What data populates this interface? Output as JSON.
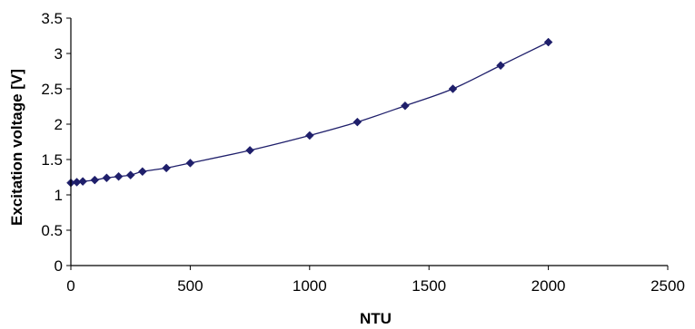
{
  "chart_data": {
    "type": "line",
    "title": "",
    "xlabel": "NTU",
    "ylabel": "Excitation voltage [V]",
    "xlim": [
      0,
      2500
    ],
    "ylim": [
      0,
      3.5
    ],
    "xticks": [
      0,
      500,
      1000,
      1500,
      2000,
      2500
    ],
    "yticks": [
      0,
      0.5,
      1,
      1.5,
      2,
      2.5,
      3,
      3.5
    ],
    "xtick_labels": [
      "0",
      "500",
      "1000",
      "1500",
      "2000",
      "2500"
    ],
    "ytick_labels": [
      "0",
      "0.5",
      "1",
      "1.5",
      "2",
      "2.5",
      "3",
      "3.5"
    ],
    "grid": false,
    "legend": "none",
    "marker": "diamond",
    "colors": {
      "series": "#1f1f6b",
      "axis": "#000000"
    },
    "series": [
      {
        "x": [
          0,
          25,
          50,
          100,
          150,
          200,
          250,
          300,
          400,
          500,
          750,
          1000,
          1200,
          1400,
          1600,
          1800,
          2000
        ],
        "values": [
          1.17,
          1.18,
          1.19,
          1.21,
          1.24,
          1.26,
          1.28,
          1.33,
          1.38,
          1.45,
          1.63,
          1.84,
          2.03,
          2.26,
          2.5,
          2.83,
          3.16
        ]
      }
    ]
  }
}
